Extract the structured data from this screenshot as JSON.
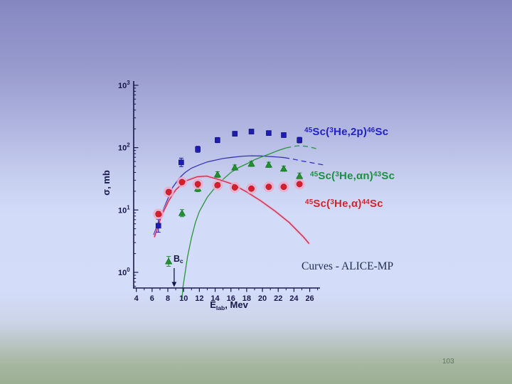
{
  "slide": {
    "page_number": "103",
    "background_stops": [
      "#8587c1 0%",
      "#989bce 18%",
      "#b0b5e0 33%",
      "#c8d0f0 47%",
      "#d2dbf8 56%",
      "#d3dcf8 76%",
      "#ccd4e8 84%",
      "#bac6c6 89%",
      "#a8b8a4 94%",
      "#9cb093 100%"
    ],
    "text_color": "#17174a"
  },
  "chart_data": {
    "type": "scatter",
    "title": "",
    "ylabel": "σ, mb",
    "xlabel_parts": [
      [
        "txt",
        "E"
      ],
      [
        "sub",
        "lab"
      ],
      [
        "txt",
        ", Mev"
      ]
    ],
    "x_ticks": [
      4,
      6,
      8,
      10,
      12,
      14,
      16,
      18,
      20,
      22,
      24,
      26
    ],
    "x_minor_ticks": [
      5,
      7,
      9,
      11,
      13,
      15,
      17,
      19,
      21,
      23,
      25,
      27
    ],
    "y_ticks_exp": [
      0,
      1,
      2,
      3
    ],
    "xlim": [
      3.7,
      27.3
    ],
    "ylim_log10": [
      -0.25,
      3.05
    ],
    "axis_color": "#17174a",
    "grid": "off",
    "legend_position": "right-inline",
    "annotations": {
      "barrier_label_parts": [
        [
          "txt",
          "B"
        ],
        [
          "sub",
          "c"
        ]
      ],
      "barrier_energy_mev": 8.8,
      "curves_label": "Curves - ALICE-MP"
    },
    "series": [
      {
        "id": "he3-2p",
        "marker": "square",
        "color": "#1d1db2",
        "label_color": "#2222c4",
        "label_parts": [
          [
            "sup",
            "45"
          ],
          [
            "txt",
            "Sc("
          ],
          [
            "sup",
            "3"
          ],
          [
            "txt",
            "He,2p)"
          ],
          [
            "sup",
            "46"
          ],
          [
            "txt",
            "Sc"
          ]
        ],
        "E_mev": [
          6.8,
          9.7,
          11.8,
          14.3,
          16.5,
          18.6,
          20.8,
          22.7,
          24.7
        ],
        "sigma_mb": [
          5.6,
          58,
          94,
          132,
          167,
          181,
          171,
          159,
          132
        ],
        "err_rel": [
          0.27,
          0.17,
          0.12,
          0.1,
          0.09,
          0.09,
          0.09,
          0.09,
          0.11
        ]
      },
      {
        "id": "he3-alpha-n",
        "marker": "triangle",
        "color": "#21912f",
        "label_color": "#1a9141",
        "label_parts": [
          [
            "sup",
            "45"
          ],
          [
            "txt",
            "Sc("
          ],
          [
            "sup",
            "3"
          ],
          [
            "txt",
            "He,αn)"
          ],
          [
            "sup",
            "43"
          ],
          [
            "txt",
            "Sc"
          ]
        ],
        "E_mev": [
          8.1,
          9.8,
          11.8,
          14.3,
          16.5,
          18.6,
          20.8,
          22.7,
          24.7
        ],
        "sigma_mb": [
          1.5,
          8.9,
          22,
          37,
          48,
          55,
          53,
          46,
          35
        ],
        "err_rel": [
          0.2,
          0.14,
          0.12,
          0.11,
          0.1,
          0.1,
          0.1,
          0.1,
          0.12
        ]
      },
      {
        "id": "he3-alpha",
        "marker": "circle",
        "color": "#d41f2c",
        "halo_color": "#f2a8c6",
        "label_color": "#d42432",
        "label_parts": [
          [
            "sup",
            "45"
          ],
          [
            "txt",
            "Sc("
          ],
          [
            "sup",
            "3"
          ],
          [
            "txt",
            "He,α)"
          ],
          [
            "sup",
            "44"
          ],
          [
            "txt",
            "Sc"
          ]
        ],
        "E_mev": [
          6.8,
          8.1,
          9.8,
          11.8,
          14.3,
          16.5,
          18.6,
          20.8,
          22.7,
          24.7
        ],
        "sigma_mb": [
          8.6,
          19.4,
          28,
          26,
          25,
          23,
          22,
          23.5,
          23.5,
          26
        ],
        "err_rel": [
          0.1,
          0.08,
          0.06,
          0.06,
          0.06,
          0.06,
          0.06,
          0.06,
          0.06,
          0.06
        ]
      }
    ],
    "curves": [
      {
        "id": "alice-mp-2p",
        "color": "#3333b8",
        "dash_from_E": 22.8,
        "points": [
          [
            6.2,
            4
          ],
          [
            7,
            7.5
          ],
          [
            7.6,
            11.5
          ],
          [
            8.6,
            23
          ],
          [
            9.5,
            33
          ],
          [
            10.2,
            40
          ],
          [
            11,
            47
          ],
          [
            12,
            53
          ],
          [
            13,
            59
          ],
          [
            14,
            63
          ],
          [
            15,
            67
          ],
          [
            16.2,
            70
          ],
          [
            17.5,
            73
          ],
          [
            18.6,
            74
          ],
          [
            19.8,
            73.5
          ],
          [
            21,
            72
          ],
          [
            22,
            70.5
          ],
          [
            22.8,
            69
          ],
          [
            24,
            65
          ],
          [
            25,
            61
          ],
          [
            26,
            58
          ],
          [
            27,
            55
          ],
          [
            27.7,
            53
          ]
        ]
      },
      {
        "id": "alice-mp-alpha-n",
        "color": "#2d9440",
        "dash_from_E": 22.6,
        "points": [
          [
            9.8,
            0.38
          ],
          [
            9.9,
            0.56
          ],
          [
            10.2,
            1.0
          ],
          [
            10.5,
            1.8
          ],
          [
            11,
            3.6
          ],
          [
            11.5,
            6.3
          ],
          [
            12,
            9.5
          ],
          [
            13,
            16
          ],
          [
            14,
            23
          ],
          [
            15,
            31
          ],
          [
            16,
            40
          ],
          [
            17,
            48
          ],
          [
            18,
            55
          ],
          [
            19,
            64
          ],
          [
            20,
            72
          ],
          [
            21,
            80
          ],
          [
            22,
            90
          ],
          [
            23,
            99
          ],
          [
            24,
            105
          ],
          [
            24.6,
            107
          ],
          [
            25.5,
            105
          ],
          [
            26.5,
            99
          ],
          [
            27,
            95
          ]
        ]
      },
      {
        "id": "alice-mp-alpha",
        "color": "#c43050",
        "halo_color": "#f2a2c0",
        "points": [
          [
            6.3,
            3.7
          ],
          [
            7.2,
            8.2
          ],
          [
            8.1,
            14
          ],
          [
            9,
            21
          ],
          [
            10.2,
            29
          ],
          [
            11.7,
            34
          ],
          [
            12.9,
            35
          ],
          [
            14.4,
            31
          ],
          [
            16.2,
            26
          ],
          [
            18,
            19.5
          ],
          [
            19.8,
            14
          ],
          [
            21.6,
            9.6
          ],
          [
            23.4,
            6.3
          ],
          [
            25.2,
            3.7
          ],
          [
            25.9,
            2.9
          ]
        ]
      }
    ]
  }
}
